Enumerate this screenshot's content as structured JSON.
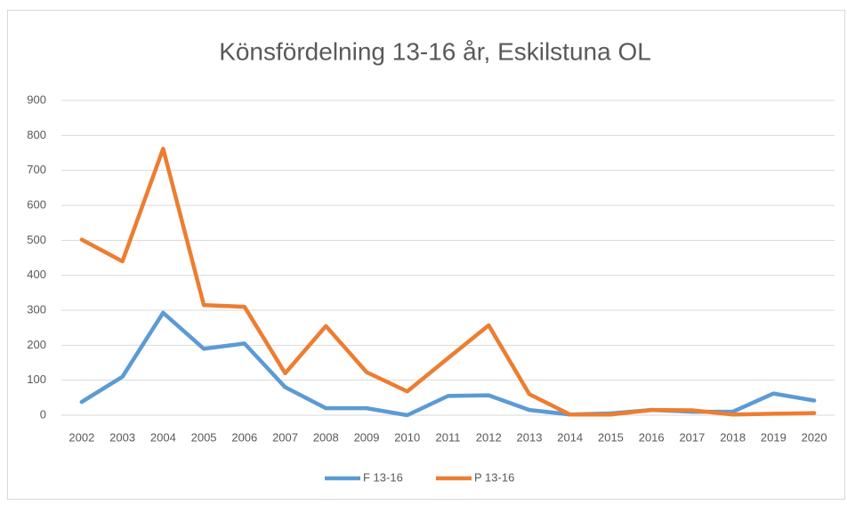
{
  "chart_data": {
    "type": "line",
    "title": "Könsfördelning 13-16 år, Eskilstuna OL",
    "categories": [
      "2002",
      "2003",
      "2004",
      "2005",
      "2006",
      "2007",
      "2008",
      "2009",
      "2010",
      "2011",
      "2012",
      "2013",
      "2014",
      "2015",
      "2016",
      "2017",
      "2018",
      "2019",
      "2020"
    ],
    "series": [
      {
        "name": "F 13-16",
        "color": "#5b9bd5",
        "values": [
          38,
          110,
          293,
          190,
          205,
          80,
          20,
          20,
          0,
          55,
          57,
          15,
          2,
          5,
          15,
          10,
          10,
          62,
          42
        ]
      },
      {
        "name": "P 13-16",
        "color": "#ed7d31",
        "values": [
          502,
          440,
          762,
          315,
          310,
          120,
          255,
          123,
          68,
          163,
          257,
          60,
          2,
          2,
          15,
          14,
          2,
          4,
          6
        ]
      }
    ],
    "ylim": [
      0,
      900
    ],
    "yticks": [
      0,
      100,
      200,
      300,
      400,
      500,
      600,
      700,
      800,
      900
    ],
    "grid": true,
    "legend": "bottom"
  }
}
